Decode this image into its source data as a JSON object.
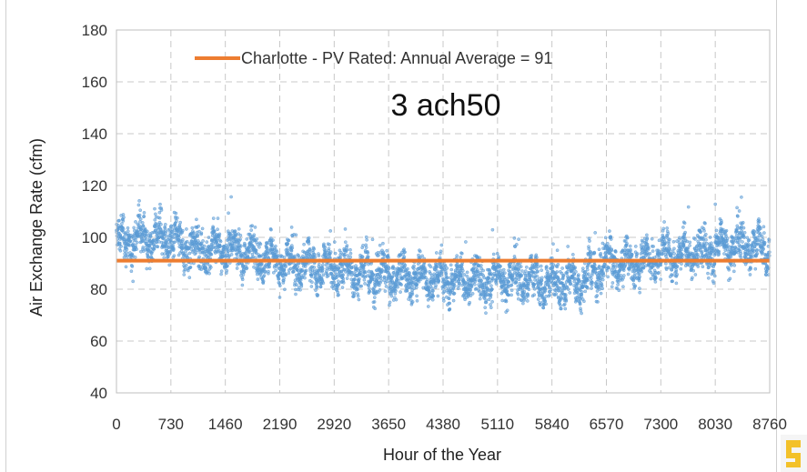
{
  "chart_data": {
    "type": "scatter",
    "title": "",
    "xlabel": "Hour of the Year",
    "ylabel": "Air Exchange Rate (cfm)",
    "xlim": [
      0,
      8760
    ],
    "ylim": [
      40,
      180
    ],
    "x_ticks": [
      "0",
      "730",
      "1460",
      "2190",
      "2920",
      "3650",
      "4380",
      "5110",
      "5840",
      "6570",
      "7300",
      "8030",
      "8760"
    ],
    "y_ticks": [
      "40",
      "60",
      "80",
      "100",
      "120",
      "140",
      "160",
      "180"
    ],
    "grid": "dashed",
    "legend": {
      "label": "Charlotte - PV Rated:  Annual Average = 91",
      "placement": "top"
    },
    "annotation": "3 ach50",
    "series": [
      {
        "name": "Charlotte - PV Rated:  Annual Average = 91",
        "kind": "line",
        "color": "#ED7D31",
        "x": [
          0,
          8760
        ],
        "y": [
          91,
          91
        ]
      },
      {
        "kind": "scatter",
        "color": "#5B9BD5",
        "profile_x": [
          0,
          365,
          730,
          1095,
          1460,
          1825,
          2190,
          2555,
          2920,
          3285,
          3650,
          4015,
          4380,
          4745,
          5110,
          5475,
          5840,
          6205,
          6570,
          6935,
          7300,
          7665,
          8030,
          8395,
          8760
        ],
        "profile_mean": [
          98,
          100,
          99,
          95,
          96,
          94,
          90,
          89,
          88,
          87,
          85,
          85,
          84,
          84,
          84,
          84,
          82,
          83,
          90,
          90,
          93,
          94,
          96,
          97,
          95
        ],
        "spread": 9,
        "hours": 8760
      }
    ]
  },
  "colors": {
    "scatter": "#5B9BD5",
    "average_line": "#ED7D31",
    "grid": "#c8c8c8"
  }
}
